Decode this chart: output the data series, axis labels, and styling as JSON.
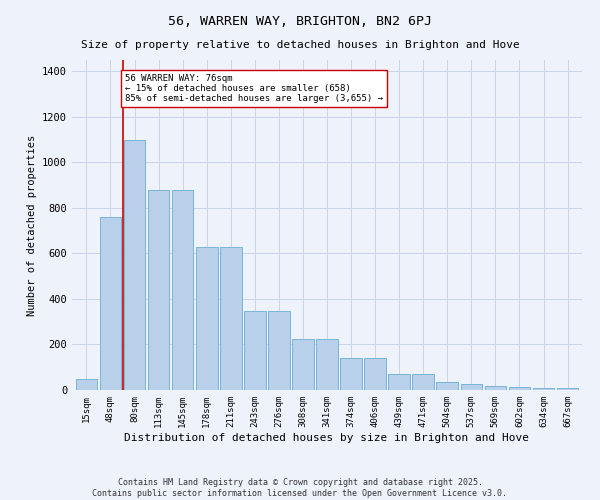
{
  "title": "56, WARREN WAY, BRIGHTON, BN2 6PJ",
  "subtitle": "Size of property relative to detached houses in Brighton and Hove",
  "xlabel": "Distribution of detached houses by size in Brighton and Hove",
  "ylabel": "Number of detached properties",
  "categories": [
    "15sqm",
    "48sqm",
    "80sqm",
    "113sqm",
    "145sqm",
    "178sqm",
    "211sqm",
    "243sqm",
    "276sqm",
    "308sqm",
    "341sqm",
    "374sqm",
    "406sqm",
    "439sqm",
    "471sqm",
    "504sqm",
    "537sqm",
    "569sqm",
    "602sqm",
    "634sqm",
    "667sqm"
  ],
  "values": [
    50,
    760,
    1100,
    880,
    880,
    630,
    630,
    345,
    345,
    225,
    225,
    140,
    140,
    70,
    70,
    35,
    25,
    18,
    12,
    8,
    8
  ],
  "bar_color": "#b8d0ea",
  "bar_edge_color": "#6baed6",
  "background_color": "#eef2fb",
  "grid_color": "#c8d4e8",
  "vline_x": 1.5,
  "vline_color": "#cc0000",
  "annotation_text": "56 WARREN WAY: 76sqm\n← 15% of detached houses are smaller (658)\n85% of semi-detached houses are larger (3,655) →",
  "annotation_box_color": "#ffffff",
  "annotation_box_edge": "#cc0000",
  "ylim": [
    0,
    1450
  ],
  "yticks": [
    0,
    200,
    400,
    600,
    800,
    1000,
    1200,
    1400
  ],
  "footnote": "Contains HM Land Registry data © Crown copyright and database right 2025.\nContains public sector information licensed under the Open Government Licence v3.0."
}
